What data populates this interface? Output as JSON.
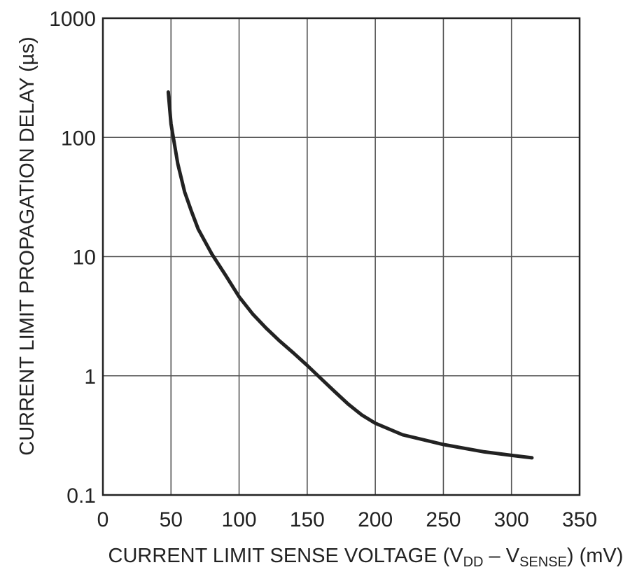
{
  "chart_data": {
    "type": "line",
    "xlabel_parts": [
      "CURRENT LIMIT SENSE VOLTAGE (V",
      "DD",
      " – V",
      "SENSE",
      ") (mV)"
    ],
    "ylabel": "CURRENT LIMIT PROPAGATION DELAY (µs)",
    "xlim": [
      0,
      350
    ],
    "ylim": [
      0.1,
      1000
    ],
    "yscale": "log",
    "grid": true,
    "xticks": [
      "0",
      "50",
      "100",
      "150",
      "200",
      "250",
      "300",
      "350"
    ],
    "yticks": [
      "0.1",
      "1",
      "10",
      "100",
      "1000"
    ],
    "series": [
      {
        "x": [
          48,
          50,
          55,
          60,
          65,
          70,
          80,
          90,
          100,
          110,
          120,
          130,
          140,
          150,
          160,
          170,
          180,
          190,
          200,
          220,
          250,
          280,
          300,
          315
        ],
        "y": [
          240,
          130,
          60,
          35,
          24,
          17,
          10.5,
          7,
          4.6,
          3.3,
          2.5,
          1.95,
          1.55,
          1.22,
          0.95,
          0.74,
          0.58,
          0.47,
          0.4,
          0.32,
          0.265,
          0.23,
          0.215,
          0.205
        ]
      }
    ]
  }
}
